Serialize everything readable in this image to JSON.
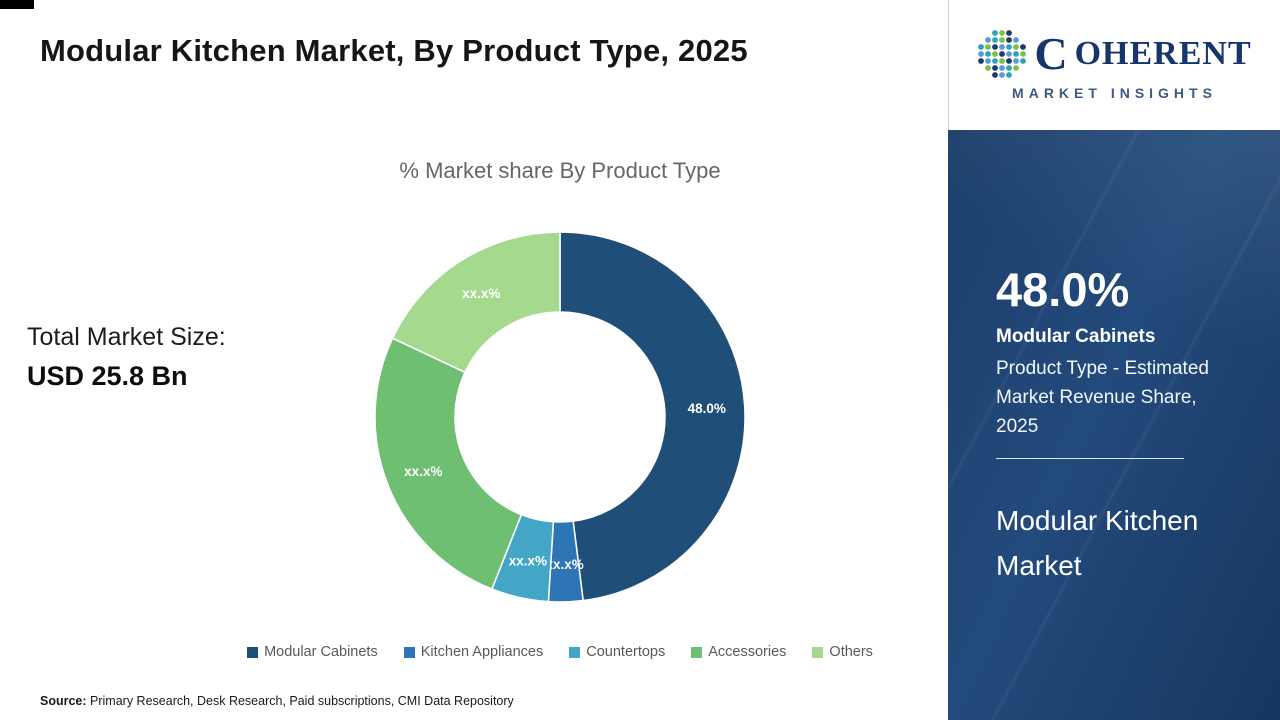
{
  "header": {
    "title": "Modular Kitchen Market, By Product Type, 2025"
  },
  "chart_data": {
    "type": "pie",
    "donut": true,
    "title": "% Market share By Product Type",
    "start_angle_deg": 0,
    "direction": "clockwise",
    "categories": [
      "Modular Cabinets",
      "Kitchen Appliances",
      "Countertops",
      "Accessories",
      "Others"
    ],
    "values": [
      48.0,
      3.0,
      5.0,
      26.0,
      18.0
    ],
    "slice_labels": [
      "48.0%",
      "xx.x%",
      "xx.x%",
      "xx.x%",
      "xx.x%"
    ],
    "colors": [
      "#1f4e79",
      "#2e75b6",
      "#43a6c6",
      "#6fbf73",
      "#a5d98e"
    ],
    "legend_position": "bottom"
  },
  "summary": {
    "total_label": "Total Market Size:",
    "total_value": "USD 25.8 Bn"
  },
  "footer": {
    "source_label": "Source:",
    "source_text": "Primary Research, Desk Research, Paid subscriptions, CMI Data Repository"
  },
  "sidebar": {
    "logo": {
      "initial": "C",
      "rest": "OHERENT",
      "subtitle": "MARKET INSIGHTS"
    },
    "stat_value": "48.0%",
    "stat_name": "Modular Cabinets",
    "stat_desc": "Product Type - Estimated Market Revenue Share, 2025",
    "panel_title": "Modular Kitchen Market"
  }
}
